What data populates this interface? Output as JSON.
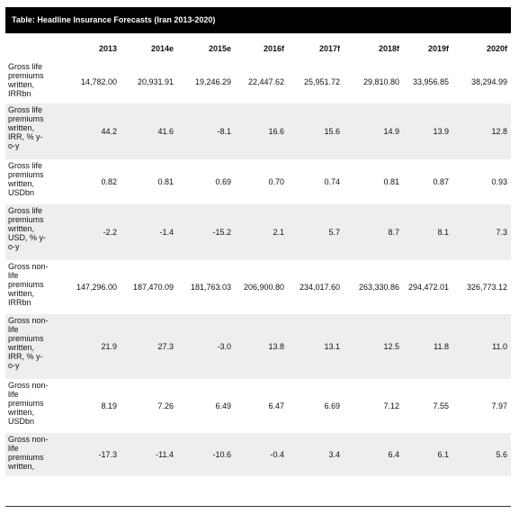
{
  "table": {
    "title": "Table: Headline Insurance Forecasts (Iran 2013-2020)",
    "columns": [
      "",
      "2013",
      "2014e",
      "2015e",
      "2016f",
      "2017f",
      "2018f",
      "2019f",
      "2020f"
    ],
    "rows": [
      {
        "label": [
          "Gross life",
          "premiums",
          "written,",
          "IRRbn"
        ],
        "values": [
          "14,782.00",
          "20,931.91",
          "19,246.29",
          "22,447.62",
          "25,951.72",
          "29,810.80",
          "33,956.85",
          "38,294.99"
        ]
      },
      {
        "label": [
          "Gross life",
          "premiums",
          "written,",
          "IRR, % y-",
          "o-y"
        ],
        "values": [
          "44.2",
          "41.6",
          "-8.1",
          "16.6",
          "15.6",
          "14.9",
          "13.9",
          "12.8"
        ]
      },
      {
        "label": [
          "Gross life",
          "premiums",
          "written,",
          "USDbn"
        ],
        "values": [
          "0.82",
          "0.81",
          "0.69",
          "0.70",
          "0.74",
          "0.81",
          "0.87",
          "0.93"
        ]
      },
      {
        "label": [
          "Gross life",
          "premiums",
          "written,",
          "USD, % y-",
          "o-y"
        ],
        "values": [
          "-2.2",
          "-1.4",
          "-15.2",
          "2.1",
          "5.7",
          "8.7",
          "8.1",
          "7.3"
        ]
      },
      {
        "label": [
          "Gross non-",
          "life",
          "premiums",
          "written,",
          "IRRbn"
        ],
        "values": [
          "147,296.00",
          "187,470.09",
          "181,763.03",
          "206,900.80",
          "234,017.60",
          "263,330.86",
          "294,472.01",
          "326,773.12"
        ]
      },
      {
        "label": [
          "Gross non-",
          "life",
          "premiums",
          "written,",
          "IRR, % y-",
          "o-y"
        ],
        "values": [
          "21.9",
          "27.3",
          "-3.0",
          "13.8",
          "13.1",
          "12.5",
          "11.8",
          "11.0"
        ]
      },
      {
        "label": [
          "Gross non-",
          "life",
          "premiums",
          "written,",
          "USDbn"
        ],
        "values": [
          "8.19",
          "7.26",
          "6.49",
          "6.47",
          "6.69",
          "7.12",
          "7.55",
          "7.97"
        ]
      },
      {
        "label": [
          "Gross non-",
          "life",
          "premiums",
          "written,"
        ],
        "values": [
          "-17.3",
          "-11.4",
          "-10.6",
          "-0.4",
          "3.4",
          "6.4",
          "6.1",
          "5.6"
        ]
      }
    ]
  }
}
